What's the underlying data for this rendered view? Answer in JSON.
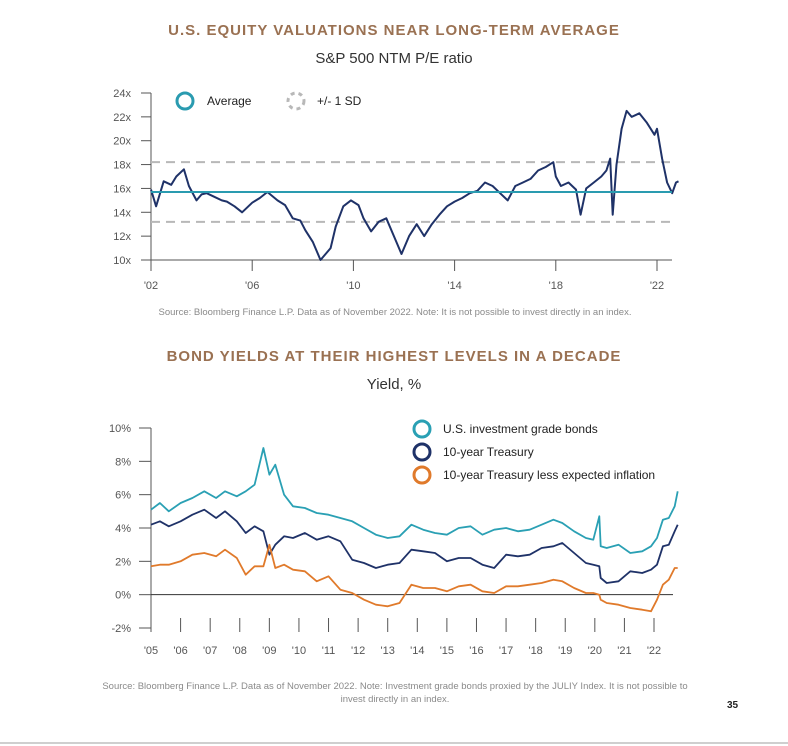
{
  "page_number": "35",
  "chart_data": [
    {
      "type": "line",
      "title": "U.S. EQUITY VALUATIONS NEAR LONG-TERM AVERAGE",
      "subtitle": "S&P 500 NTM P/E ratio",
      "xlabel": "",
      "ylabel": "",
      "xlim": [
        2002,
        2022.9
      ],
      "ylim": [
        10,
        24
      ],
      "grid": false,
      "legend_placement": "top-left",
      "yticks": [
        10,
        12,
        14,
        16,
        18,
        20,
        22,
        24
      ],
      "ytick_labels": [
        "10x",
        "12x",
        "14x",
        "16x",
        "18x",
        "20x",
        "22x",
        "24x"
      ],
      "xticks": [
        2002,
        2006,
        2010,
        2014,
        2018,
        2022
      ],
      "xtick_labels": [
        "'02",
        "'06",
        "'10",
        "'14",
        "'18",
        "'22"
      ],
      "legend": [
        {
          "name": "Average",
          "color": "#2a9bb0",
          "style": "solid"
        },
        {
          "name": "+/- 1 SD",
          "color": "#b8b8b8",
          "style": "dashed"
        }
      ],
      "reference_lines": {
        "average": 15.7,
        "plus_1sd": 18.2,
        "minus_1sd": 13.2
      },
      "series": [
        {
          "name": "S&P 500 NTM P/E",
          "color": "#1f3268",
          "x": [
            2002.0,
            2002.2,
            2002.5,
            2002.8,
            2003.0,
            2003.3,
            2003.5,
            2003.8,
            2004.0,
            2004.2,
            2004.5,
            2004.8,
            2005.0,
            2005.3,
            2005.6,
            2006.0,
            2006.3,
            2006.6,
            2007.0,
            2007.3,
            2007.6,
            2007.9,
            2008.1,
            2008.4,
            2008.7,
            2008.9,
            2009.1,
            2009.3,
            2009.6,
            2009.9,
            2010.2,
            2010.4,
            2010.7,
            2011.0,
            2011.3,
            2011.6,
            2011.9,
            2012.2,
            2012.5,
            2012.8,
            2013.1,
            2013.4,
            2013.7,
            2014.0,
            2014.3,
            2014.6,
            2014.9,
            2015.2,
            2015.5,
            2015.8,
            2016.1,
            2016.4,
            2016.7,
            2017.0,
            2017.3,
            2017.6,
            2017.9,
            2018.0,
            2018.2,
            2018.5,
            2018.8,
            2018.98,
            2019.2,
            2019.5,
            2019.8,
            2020.0,
            2020.15,
            2020.25,
            2020.4,
            2020.6,
            2020.8,
            2021.0,
            2021.3,
            2021.6,
            2021.9,
            2022.0,
            2022.2,
            2022.4,
            2022.6,
            2022.75,
            2022.85
          ],
          "values": [
            15.9,
            14.5,
            16.6,
            16.3,
            17.0,
            17.6,
            16.2,
            15.0,
            15.5,
            15.6,
            15.3,
            15.0,
            14.9,
            14.5,
            14.0,
            14.8,
            15.2,
            15.7,
            15.0,
            14.6,
            13.5,
            13.3,
            12.5,
            11.5,
            10.0,
            10.5,
            11.0,
            12.8,
            14.5,
            15.0,
            14.6,
            13.5,
            12.4,
            13.2,
            13.5,
            12.0,
            10.5,
            12.0,
            13.0,
            12.0,
            13.0,
            13.8,
            14.5,
            14.9,
            15.2,
            15.6,
            15.8,
            16.5,
            16.2,
            15.6,
            15.0,
            16.2,
            16.5,
            16.8,
            17.5,
            17.8,
            18.2,
            17.0,
            16.2,
            16.5,
            15.9,
            13.8,
            16.0,
            16.5,
            17.0,
            17.5,
            18.5,
            13.8,
            18.0,
            21.0,
            22.5,
            22.0,
            22.3,
            21.5,
            20.5,
            21.0,
            18.5,
            16.5,
            15.6,
            16.5,
            16.6
          ]
        }
      ],
      "source": "Source: Bloomberg Finance L.P. Data as of November 2022. Note: It is not possible to invest directly in an index."
    },
    {
      "type": "line",
      "title": "BOND YIELDS AT THEIR HIGHEST LEVELS IN A DECADE",
      "subtitle": "Yield, %",
      "xlabel": "",
      "ylabel": "",
      "xlim": [
        2005,
        2022.9
      ],
      "ylim": [
        -2,
        10
      ],
      "grid": false,
      "legend_placement": "top-right",
      "yticks": [
        -2,
        0,
        2,
        4,
        6,
        8,
        10
      ],
      "ytick_labels": [
        "-2%",
        "0%",
        "2%",
        "4%",
        "6%",
        "8%",
        "10%"
      ],
      "xticks": [
        2005,
        2006,
        2007,
        2008,
        2009,
        2010,
        2011,
        2012,
        2013,
        2014,
        2015,
        2016,
        2017,
        2018,
        2019,
        2020,
        2021,
        2022
      ],
      "xtick_labels": [
        "'05",
        "'06",
        "'07",
        "'08",
        "'09",
        "'10",
        "'11",
        "'12",
        "'13",
        "'14",
        "'15",
        "'16",
        "'17",
        "'18",
        "'19",
        "'20",
        "'21",
        "'22"
      ],
      "x": [
        2005.0,
        2005.3,
        2005.6,
        2006.0,
        2006.4,
        2006.8,
        2007.2,
        2007.5,
        2007.9,
        2008.2,
        2008.5,
        2008.8,
        2009.0,
        2009.2,
        2009.5,
        2009.8,
        2010.2,
        2010.6,
        2011.0,
        2011.4,
        2011.8,
        2012.2,
        2012.6,
        2013.0,
        2013.4,
        2013.8,
        2014.2,
        2014.6,
        2015.0,
        2015.4,
        2015.8,
        2016.2,
        2016.6,
        2017.0,
        2017.4,
        2017.8,
        2018.2,
        2018.6,
        2018.9,
        2019.3,
        2019.7,
        2019.95,
        2020.15,
        2020.2,
        2020.4,
        2020.8,
        2021.2,
        2021.6,
        2021.9,
        2022.1,
        2022.3,
        2022.5,
        2022.7,
        2022.8
      ],
      "series": [
        {
          "name": "U.S. investment grade bonds",
          "color": "#2aa0b4",
          "values": [
            5.1,
            5.5,
            5.0,
            5.5,
            5.8,
            6.2,
            5.8,
            6.2,
            5.9,
            6.2,
            6.6,
            8.8,
            7.2,
            7.8,
            6.0,
            5.3,
            5.2,
            4.9,
            4.8,
            4.6,
            4.4,
            4.0,
            3.6,
            3.4,
            3.5,
            4.2,
            3.9,
            3.7,
            3.6,
            4.0,
            4.1,
            3.6,
            3.9,
            4.0,
            3.8,
            3.9,
            4.2,
            4.5,
            4.3,
            3.8,
            3.4,
            3.3,
            4.7,
            2.9,
            2.8,
            3.0,
            2.5,
            2.6,
            2.9,
            3.4,
            4.5,
            4.6,
            5.3,
            6.2
          ]
        },
        {
          "name": "10-year Treasury",
          "color": "#1f3268",
          "values": [
            4.2,
            4.4,
            4.1,
            4.4,
            4.8,
            5.1,
            4.6,
            5.0,
            4.4,
            3.7,
            4.1,
            3.8,
            2.4,
            3.0,
            3.5,
            3.4,
            3.7,
            3.3,
            3.5,
            3.2,
            2.1,
            1.9,
            1.6,
            1.8,
            1.9,
            2.7,
            2.6,
            2.5,
            2.0,
            2.2,
            2.2,
            1.8,
            1.6,
            2.4,
            2.3,
            2.4,
            2.8,
            2.9,
            3.1,
            2.5,
            1.9,
            1.8,
            1.7,
            1.0,
            0.7,
            0.8,
            1.4,
            1.3,
            1.5,
            1.8,
            2.9,
            3.0,
            3.8,
            4.2
          ]
        },
        {
          "name": "10-year Treasury less expected inflation",
          "color": "#e07a2b",
          "values": [
            1.7,
            1.8,
            1.8,
            2.0,
            2.4,
            2.5,
            2.3,
            2.7,
            2.2,
            1.2,
            1.7,
            1.7,
            3.0,
            1.6,
            1.8,
            1.5,
            1.4,
            0.8,
            1.1,
            0.3,
            0.1,
            -0.3,
            -0.6,
            -0.7,
            -0.5,
            0.6,
            0.4,
            0.4,
            0.2,
            0.5,
            0.6,
            0.2,
            0.1,
            0.5,
            0.5,
            0.6,
            0.7,
            0.9,
            0.8,
            0.4,
            0.1,
            0.1,
            0.0,
            -0.3,
            -0.5,
            -0.6,
            -0.8,
            -0.9,
            -1.0,
            -0.3,
            0.6,
            0.9,
            1.6,
            1.6
          ]
        }
      ],
      "source": "Source: Bloomberg Finance L.P. Data as of November 2022. Note: Investment grade bonds proxied by the JULIY Index. It is not possible to invest directly in an index."
    }
  ]
}
